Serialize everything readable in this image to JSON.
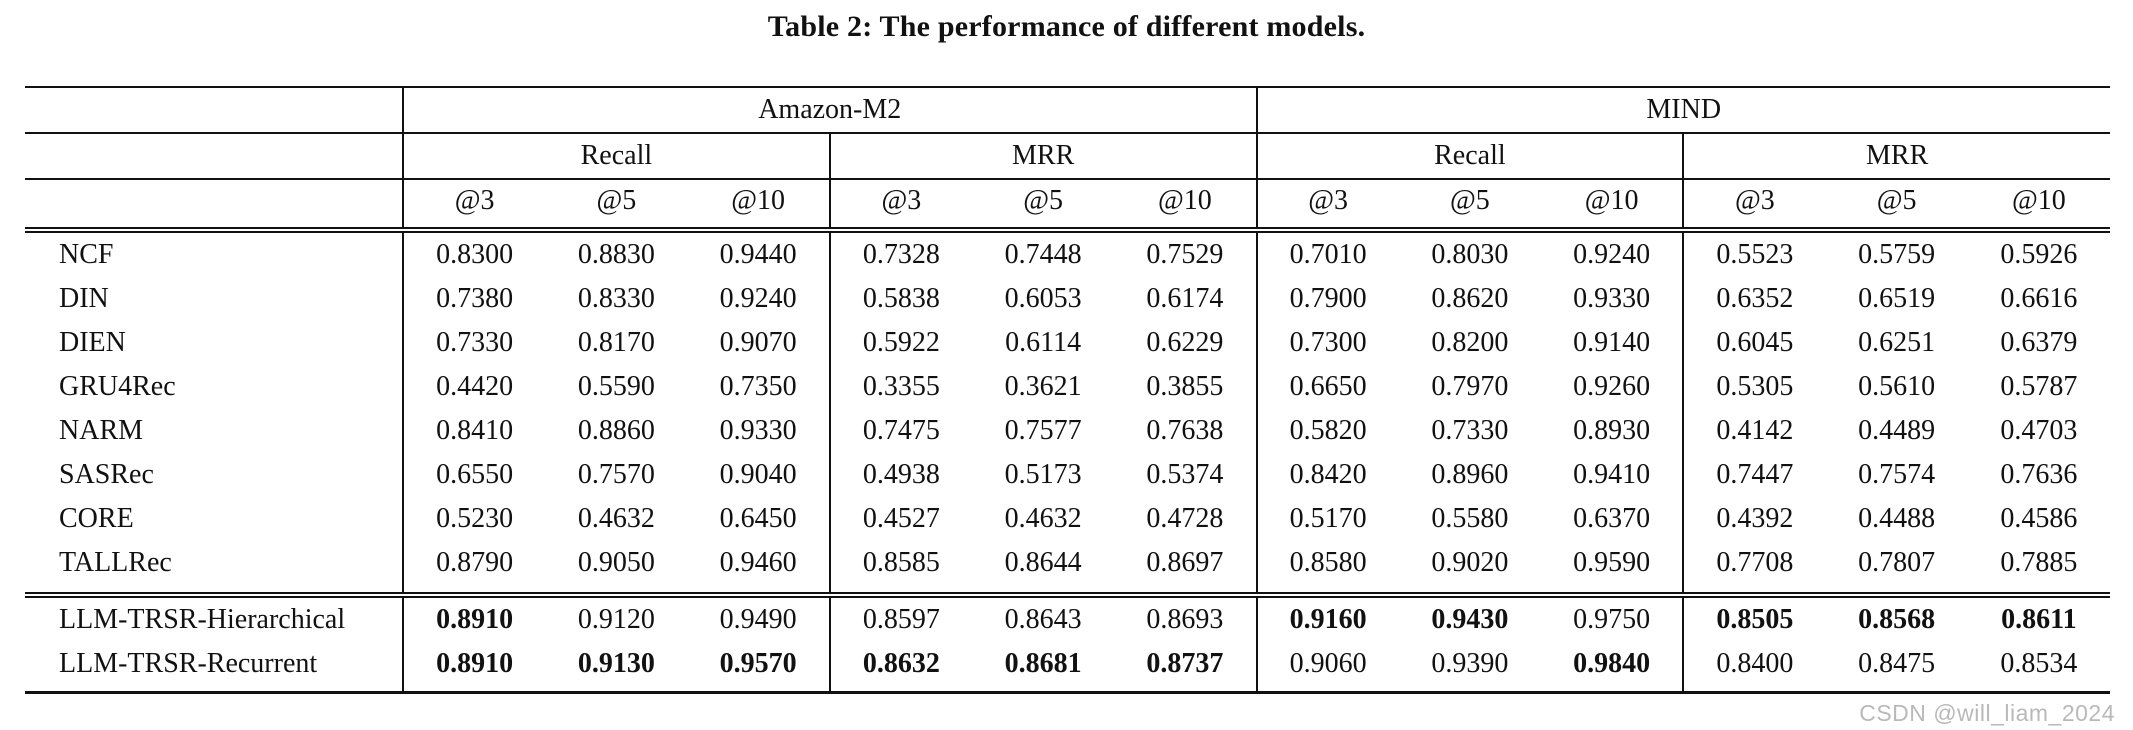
{
  "title": "Table 2: The performance of different models.",
  "watermark": "CSDN @will_liam_2024",
  "table": {
    "datasets": [
      "Amazon-M2",
      "MIND"
    ],
    "metric_headers": [
      "Recall",
      "MRR",
      "Recall",
      "MRR"
    ],
    "k_labels": [
      "@3",
      "@5",
      "@10"
    ],
    "rows": [
      {
        "model": "NCF",
        "values": [
          "0.8300",
          "0.8830",
          "0.9440",
          "0.7328",
          "0.7448",
          "0.7529",
          "0.7010",
          "0.8030",
          "0.9240",
          "0.5523",
          "0.5759",
          "0.5926"
        ],
        "bold": [
          false,
          false,
          false,
          false,
          false,
          false,
          false,
          false,
          false,
          false,
          false,
          false
        ]
      },
      {
        "model": "DIN",
        "values": [
          "0.7380",
          "0.8330",
          "0.9240",
          "0.5838",
          "0.6053",
          "0.6174",
          "0.7900",
          "0.8620",
          "0.9330",
          "0.6352",
          "0.6519",
          "0.6616"
        ],
        "bold": [
          false,
          false,
          false,
          false,
          false,
          false,
          false,
          false,
          false,
          false,
          false,
          false
        ]
      },
      {
        "model": "DIEN",
        "values": [
          "0.7330",
          "0.8170",
          "0.9070",
          "0.5922",
          "0.6114",
          "0.6229",
          "0.7300",
          "0.8200",
          "0.9140",
          "0.6045",
          "0.6251",
          "0.6379"
        ],
        "bold": [
          false,
          false,
          false,
          false,
          false,
          false,
          false,
          false,
          false,
          false,
          false,
          false
        ]
      },
      {
        "model": "GRU4Rec",
        "values": [
          "0.4420",
          "0.5590",
          "0.7350",
          "0.3355",
          "0.3621",
          "0.3855",
          "0.6650",
          "0.7970",
          "0.9260",
          "0.5305",
          "0.5610",
          "0.5787"
        ],
        "bold": [
          false,
          false,
          false,
          false,
          false,
          false,
          false,
          false,
          false,
          false,
          false,
          false
        ]
      },
      {
        "model": "NARM",
        "values": [
          "0.8410",
          "0.8860",
          "0.9330",
          "0.7475",
          "0.7577",
          "0.7638",
          "0.5820",
          "0.7330",
          "0.8930",
          "0.4142",
          "0.4489",
          "0.4703"
        ],
        "bold": [
          false,
          false,
          false,
          false,
          false,
          false,
          false,
          false,
          false,
          false,
          false,
          false
        ]
      },
      {
        "model": "SASRec",
        "values": [
          "0.6550",
          "0.7570",
          "0.9040",
          "0.4938",
          "0.5173",
          "0.5374",
          "0.8420",
          "0.8960",
          "0.9410",
          "0.7447",
          "0.7574",
          "0.7636"
        ],
        "bold": [
          false,
          false,
          false,
          false,
          false,
          false,
          false,
          false,
          false,
          false,
          false,
          false
        ]
      },
      {
        "model": "CORE",
        "values": [
          "0.5230",
          "0.4632",
          "0.6450",
          "0.4527",
          "0.4632",
          "0.4728",
          "0.5170",
          "0.5580",
          "0.6370",
          "0.4392",
          "0.4488",
          "0.4586"
        ],
        "bold": [
          false,
          false,
          false,
          false,
          false,
          false,
          false,
          false,
          false,
          false,
          false,
          false
        ]
      },
      {
        "model": "TALLRec",
        "values": [
          "0.8790",
          "0.9050",
          "0.9460",
          "0.8585",
          "0.8644",
          "0.8697",
          "0.8580",
          "0.9020",
          "0.9590",
          "0.7708",
          "0.7807",
          "0.7885"
        ],
        "bold": [
          false,
          false,
          false,
          false,
          false,
          false,
          false,
          false,
          false,
          false,
          false,
          false
        ]
      },
      {
        "model": "LLM-TRSR-Hierarchical",
        "values": [
          "0.8910",
          "0.9120",
          "0.9490",
          "0.8597",
          "0.8643",
          "0.8693",
          "0.9160",
          "0.9430",
          "0.9750",
          "0.8505",
          "0.8568",
          "0.8611"
        ],
        "bold": [
          true,
          false,
          false,
          false,
          false,
          false,
          true,
          true,
          false,
          true,
          true,
          true
        ]
      },
      {
        "model": "LLM-TRSR-Recurrent",
        "values": [
          "0.8910",
          "0.9130",
          "0.9570",
          "0.8632",
          "0.8681",
          "0.8737",
          "0.9060",
          "0.9390",
          "0.9840",
          "0.8400",
          "0.8475",
          "0.8534"
        ],
        "bold": [
          true,
          true,
          true,
          true,
          true,
          true,
          false,
          false,
          true,
          false,
          false,
          false
        ]
      }
    ]
  }
}
